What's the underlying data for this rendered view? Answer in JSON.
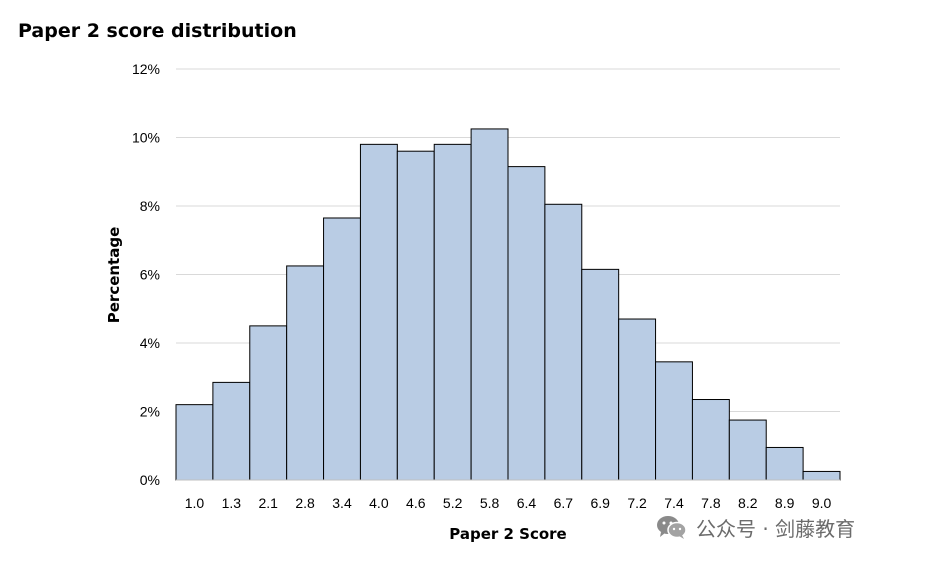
{
  "chart_data": {
    "type": "bar",
    "title": "Paper 2 score distribution",
    "xlabel": "Paper 2 Score",
    "ylabel": "Percentage",
    "categories": [
      "1.0",
      "1.3",
      "2.1",
      "2.8",
      "3.4",
      "4.0",
      "4.6",
      "5.2",
      "5.8",
      "6.4",
      "6.7",
      "6.9",
      "7.2",
      "7.4",
      "7.8",
      "8.2",
      "8.9",
      "9.0"
    ],
    "values": [
      2.2,
      2.85,
      4.5,
      6.25,
      7.65,
      9.8,
      9.6,
      9.8,
      10.25,
      9.15,
      8.05,
      6.15,
      4.7,
      3.45,
      2.35,
      1.75,
      0.95,
      0.25
    ],
    "ylim": [
      0,
      12
    ],
    "yticks": [
      0,
      2,
      4,
      6,
      8,
      10,
      12
    ],
    "ytick_labels": [
      "0%",
      "2%",
      "4%",
      "6%",
      "8%",
      "10%",
      "12%"
    ],
    "grid": true,
    "bar_color": "#b9cce4",
    "bar_edge_color": "#000000",
    "grid_color": "#d9d9d9"
  },
  "watermark": {
    "icon": "wechat-icon",
    "text": "公众号 · 剑藤教育"
  }
}
